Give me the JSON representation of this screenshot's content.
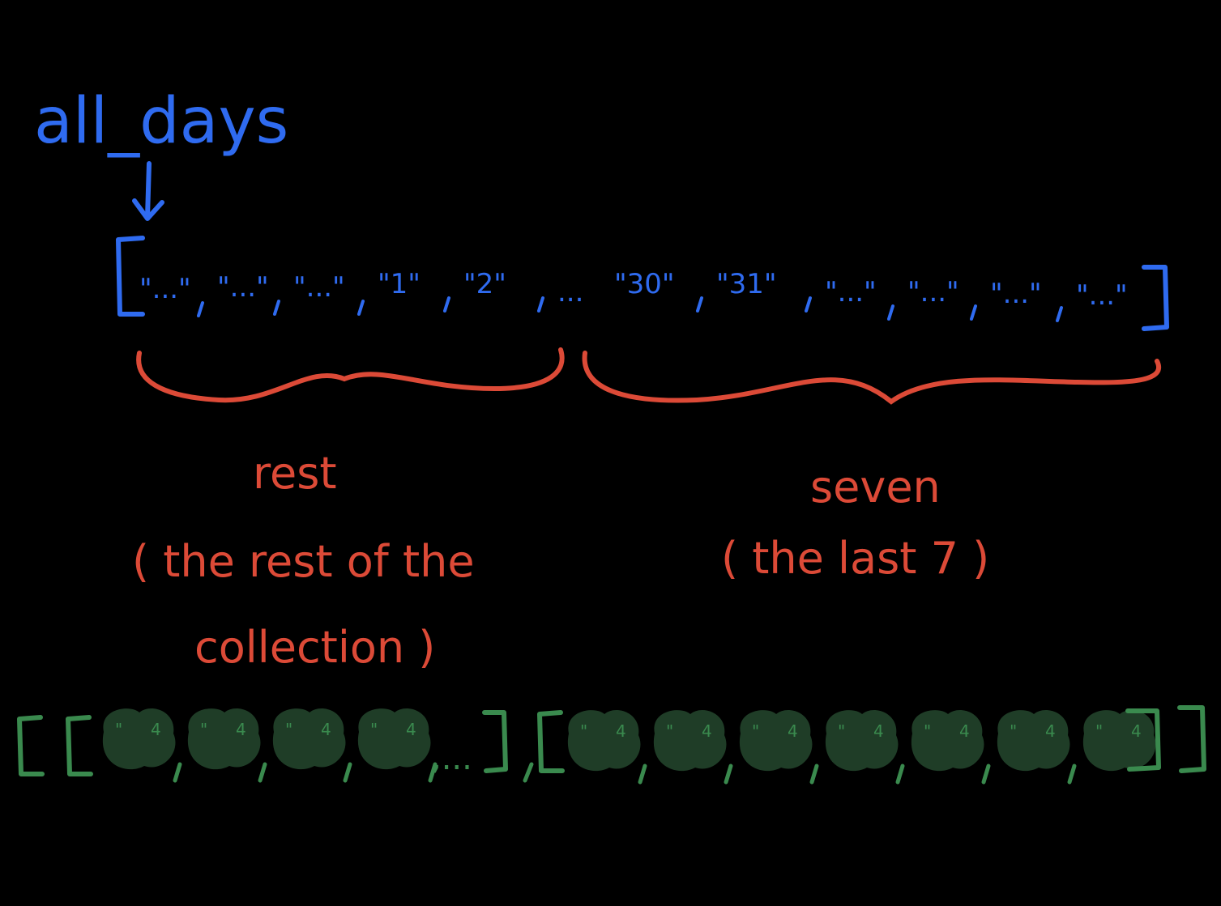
{
  "colors": {
    "background": "#000000",
    "blue": "#2f6bf0",
    "red": "#dc4a37",
    "green": "#3a8a4e",
    "blob": "#1f3d27"
  },
  "top": {
    "variable_name": "all_days",
    "array_items": [
      "\"...\"",
      "\"...\"",
      "\"...\"",
      "\"1\"",
      "\"2\"",
      "...",
      "\"30\"",
      "\"31\"",
      "\"...\"",
      "\"...\"",
      "\"...\"",
      "\"...\""
    ]
  },
  "labels": {
    "left_name": "rest",
    "left_desc_line1": "( the rest of the",
    "left_desc_line2": "collection )",
    "right_name": "seven",
    "right_desc": "( the last 7 )"
  },
  "bottom": {
    "left_group_blob_count": 4,
    "left_group_trailing": ",...",
    "right_group_blob_count": 7,
    "blob_mark_left": "\"",
    "blob_mark_right": "4"
  }
}
